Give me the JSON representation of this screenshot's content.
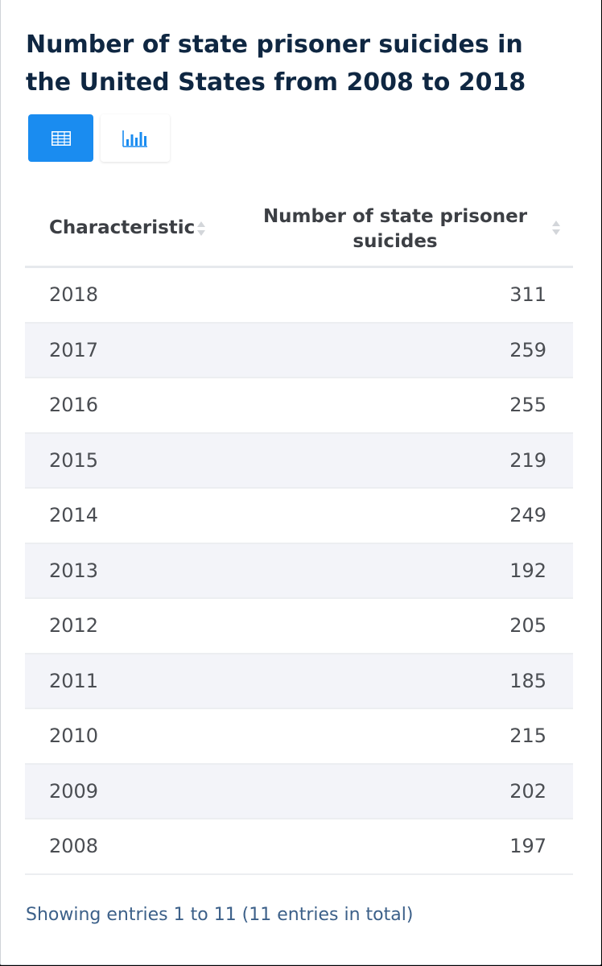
{
  "title": "Number of state prisoner suicides in the United States from 2008 to 2018",
  "view_toggle": {
    "table_icon": "table-icon",
    "chart_icon": "bar-chart-icon",
    "active": "table",
    "active_color": "#1a8cf0"
  },
  "chart_data": {
    "type": "table",
    "title": "Number of state prisoner suicides in the United States from 2008 to 2018",
    "columns": [
      "Characteristic",
      "Number of state prisoner suicides"
    ],
    "categories": [
      "2018",
      "2017",
      "2016",
      "2015",
      "2014",
      "2013",
      "2012",
      "2011",
      "2010",
      "2009",
      "2008"
    ],
    "values": [
      311,
      259,
      255,
      219,
      249,
      192,
      205,
      185,
      215,
      202,
      197
    ]
  },
  "footer": "Showing entries 1 to 11 (11 entries in total)"
}
